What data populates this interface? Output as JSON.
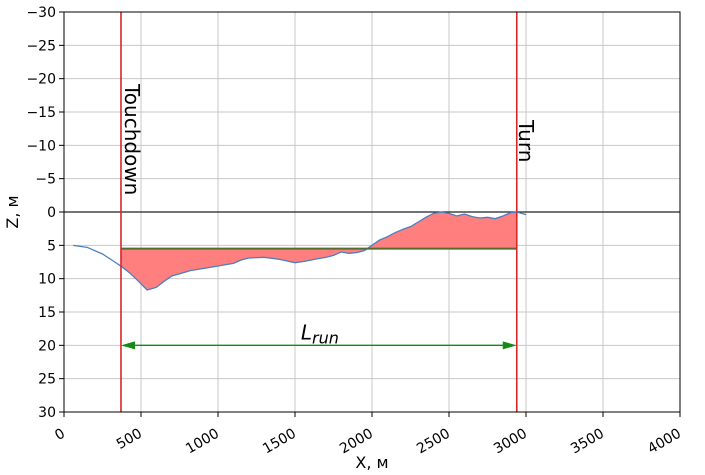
{
  "chart_data": {
    "type": "area",
    "xlabel": "X, м",
    "ylabel": "Z, м",
    "xlim": [
      0,
      4000
    ],
    "ylim": [
      -30,
      30
    ],
    "y_inverted": true,
    "grid": true,
    "xticks": [
      0,
      500,
      1000,
      1500,
      2000,
      2500,
      3000,
      3500,
      4000
    ],
    "yticks": [
      -30,
      -25,
      -20,
      -15,
      -10,
      -5,
      0,
      5,
      10,
      15,
      20,
      25,
      30
    ],
    "zero_line": 0,
    "touchdown_x": 370,
    "turn_x": 2940,
    "reference_level": 5.5,
    "profile": {
      "x": [
        60,
        150,
        250,
        330,
        380,
        430,
        480,
        540,
        600,
        650,
        700,
        760,
        820,
        900,
        1000,
        1100,
        1150,
        1200,
        1300,
        1400,
        1500,
        1560,
        1650,
        1700,
        1750,
        1800,
        1850,
        1900,
        1950,
        2000,
        2050,
        2100,
        2150,
        2200,
        2250,
        2300,
        2350,
        2400,
        2450,
        2500,
        2550,
        2600,
        2650,
        2700,
        2750,
        2800,
        2850,
        2900,
        2940,
        3000
      ],
      "z": [
        5.0,
        5.3,
        6.3,
        7.5,
        8.3,
        9.2,
        10.3,
        11.7,
        11.3,
        10.4,
        9.6,
        9.2,
        8.8,
        8.5,
        8.1,
        7.7,
        7.2,
        6.9,
        6.8,
        7.1,
        7.6,
        7.4,
        7.0,
        6.8,
        6.5,
        6.0,
        6.2,
        6.1,
        5.8,
        5.0,
        4.2,
        3.7,
        3.1,
        2.6,
        2.2,
        1.5,
        0.8,
        0.2,
        0.0,
        0.2,
        0.6,
        0.3,
        0.7,
        0.9,
        0.8,
        1.0,
        0.6,
        0.1,
        0.0,
        0.4
      ]
    },
    "annotations": {
      "touchdown_label": "Touchdown",
      "turn_label": "Turn",
      "lrun_label": "L",
      "lrun_sub": "run",
      "lrun_z": 20
    },
    "colors": {
      "fill": "#ff7f7f",
      "profile": "#4a7fbf",
      "vertical_lines": "#d62728",
      "reference_line": "#556b2f",
      "arrow": "#138a13",
      "grid": "#c8c8c8",
      "zero_line": "#222222"
    }
  }
}
